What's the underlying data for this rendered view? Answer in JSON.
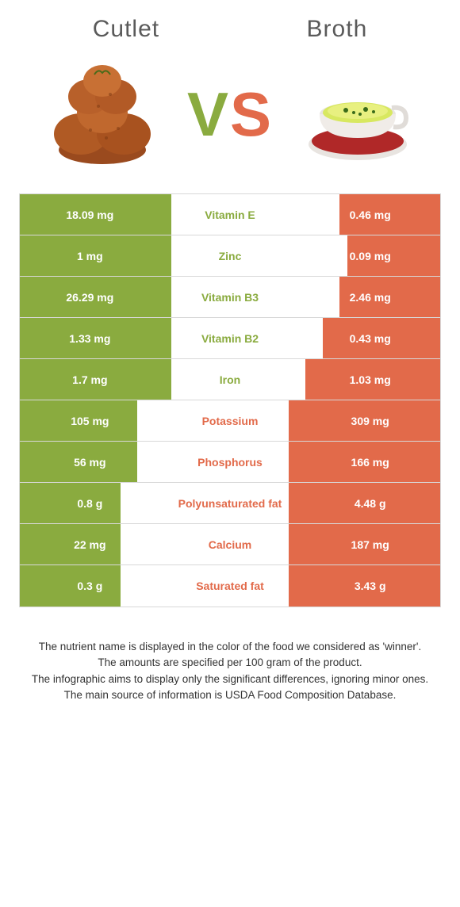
{
  "colors": {
    "left": "#8aab3f",
    "right": "#e26a4a",
    "rowBg": "#ffffff",
    "border": "#d8d8d8",
    "titleText": "#5a5a5a",
    "footerText": "#333333"
  },
  "header": {
    "left": "Cutlet",
    "right": "Broth"
  },
  "vs": {
    "v": "V",
    "s": "S"
  },
  "rows": [
    {
      "left": "18.09 mg",
      "name": "Vitamin E",
      "right": "0.46 mg",
      "winner": "left",
      "leftBarPct": 36,
      "rightBarPct": 24
    },
    {
      "left": "1 mg",
      "name": "Zinc",
      "right": "0.09 mg",
      "winner": "left",
      "leftBarPct": 36,
      "rightBarPct": 22
    },
    {
      "left": "26.29 mg",
      "name": "Vitamin B3",
      "right": "2.46 mg",
      "winner": "left",
      "leftBarPct": 36,
      "rightBarPct": 24
    },
    {
      "left": "1.33 mg",
      "name": "Vitamin B2",
      "right": "0.43 mg",
      "winner": "left",
      "leftBarPct": 36,
      "rightBarPct": 28
    },
    {
      "left": "1.7 mg",
      "name": "Iron",
      "right": "1.03 mg",
      "winner": "left",
      "leftBarPct": 36,
      "rightBarPct": 32
    },
    {
      "left": "105 mg",
      "name": "Potassium",
      "right": "309 mg",
      "winner": "right",
      "leftBarPct": 28,
      "rightBarPct": 36
    },
    {
      "left": "56 mg",
      "name": "Phosphorus",
      "right": "166 mg",
      "winner": "right",
      "leftBarPct": 28,
      "rightBarPct": 36
    },
    {
      "left": "0.8 g",
      "name": "Polyunsaturated fat",
      "right": "4.48 g",
      "winner": "right",
      "leftBarPct": 24,
      "rightBarPct": 36
    },
    {
      "left": "22 mg",
      "name": "Calcium",
      "right": "187 mg",
      "winner": "right",
      "leftBarPct": 24,
      "rightBarPct": 36
    },
    {
      "left": "0.3 g",
      "name": "Saturated fat",
      "right": "3.43 g",
      "winner": "right",
      "leftBarPct": 24,
      "rightBarPct": 36
    }
  ],
  "footer": {
    "line1": "The nutrient name is displayed in the color of the food we considered as 'winner'.",
    "line2": "The amounts are specified per 100 gram of the product.",
    "line3": "The infographic aims to display only the significant differences, ignoring minor ones.",
    "line4": "The main source of information is USDA Food Composition Database."
  }
}
